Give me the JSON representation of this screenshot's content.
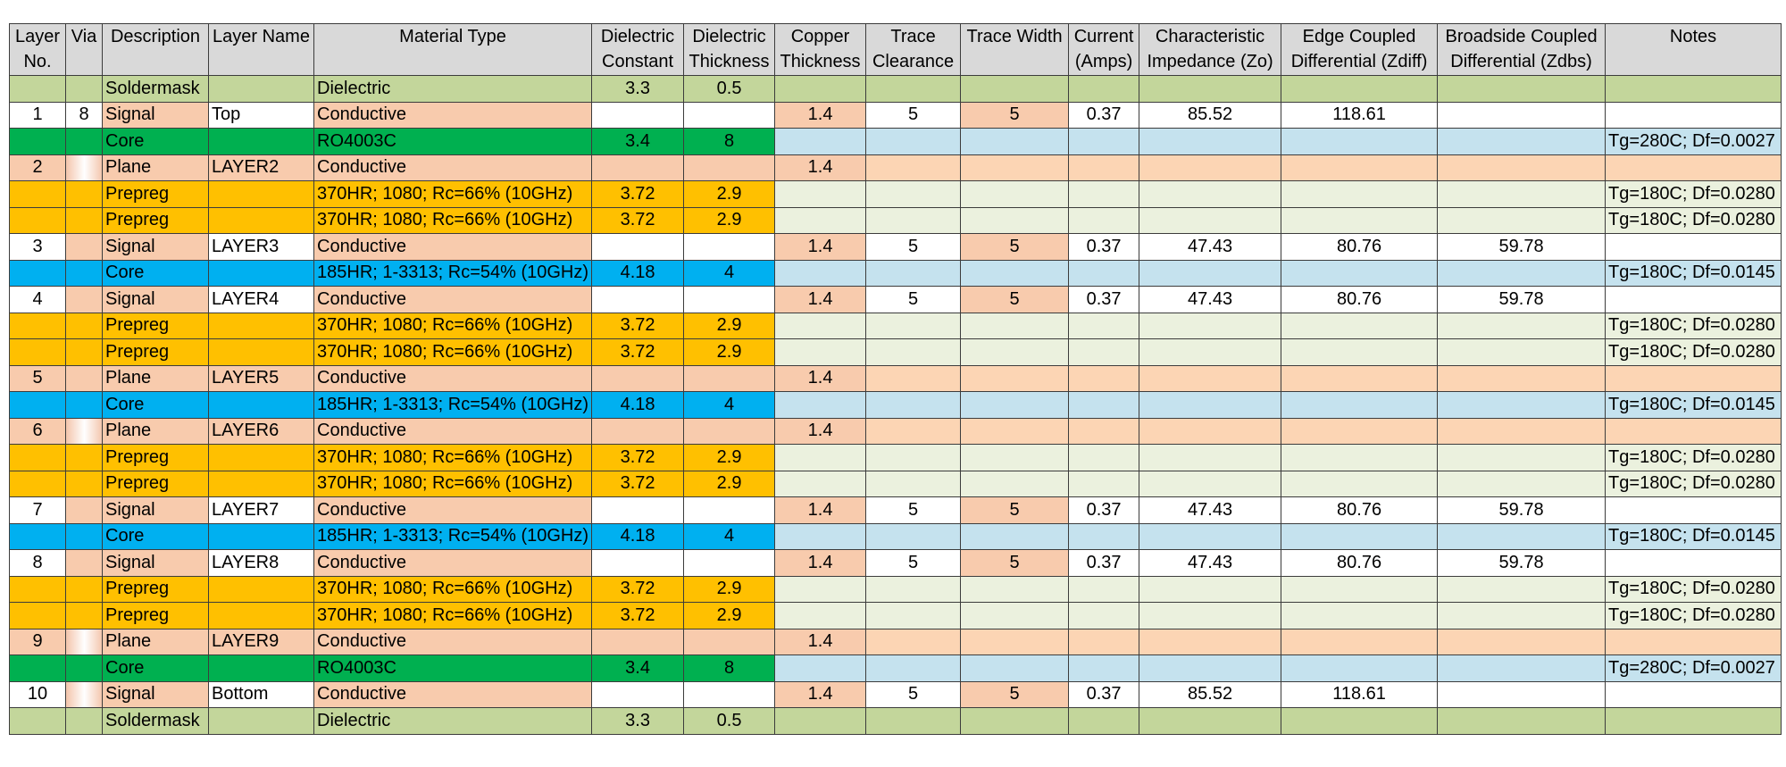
{
  "headers": [
    "Layer No.",
    "Via",
    "Description",
    "Layer Name",
    "Material Type",
    "Dielectric Constant",
    "Dielectric Thickness",
    "Copper Thickness",
    "Trace Clearance",
    "Trace Width",
    "Current (Amps)",
    "Characteristic Impedance (Zo)",
    "Edge Coupled Differential (Zdiff)",
    "Broadside Coupled Differential (Zdbs)",
    "Notes"
  ],
  "rows": [
    {
      "kind": "mask",
      "layer": "",
      "via": "",
      "desc": "Soldermask",
      "name": "",
      "material": "Dielectric",
      "dk": "3.3",
      "dt": "0.5",
      "cu": "",
      "tc": "",
      "tw": "",
      "amps": "",
      "zo": "",
      "zdiff": "",
      "zdbs": "",
      "notes": ""
    },
    {
      "kind": "signal",
      "layer": "1",
      "via": "8",
      "desc": "Signal",
      "name": "Top",
      "material": "Conductive",
      "dk": "",
      "dt": "",
      "cu": "1.4",
      "tc": "5",
      "tw": "5",
      "amps": "0.37",
      "zo": "85.52",
      "zdiff": "118.61",
      "zdbs": "",
      "notes": ""
    },
    {
      "kind": "core-ro",
      "layer": "",
      "via": "",
      "desc": "Core",
      "name": "",
      "material": "RO4003C",
      "dk": "3.4",
      "dt": "8",
      "cu": "",
      "tc": "",
      "tw": "",
      "amps": "",
      "zo": "",
      "zdiff": "",
      "zdbs": "",
      "notes": "Tg=280C; Df=0.0027"
    },
    {
      "kind": "plane",
      "layer": "2",
      "via": "",
      "desc": "Plane",
      "name": "LAYER2",
      "material": "Conductive",
      "dk": "",
      "dt": "",
      "cu": "1.4",
      "tc": "",
      "tw": "",
      "amps": "",
      "zo": "",
      "zdiff": "",
      "zdbs": "",
      "notes": ""
    },
    {
      "kind": "prepreg",
      "layer": "",
      "via": "",
      "desc": "Prepreg",
      "name": "",
      "material": "370HR; 1080; Rc=66% (10GHz)",
      "dk": "3.72",
      "dt": "2.9",
      "cu": "",
      "tc": "",
      "tw": "",
      "amps": "",
      "zo": "",
      "zdiff": "",
      "zdbs": "",
      "notes": "Tg=180C; Df=0.0280"
    },
    {
      "kind": "prepreg",
      "layer": "",
      "via": "",
      "desc": "Prepreg",
      "name": "",
      "material": "370HR; 1080; Rc=66% (10GHz)",
      "dk": "3.72",
      "dt": "2.9",
      "cu": "",
      "tc": "",
      "tw": "",
      "amps": "",
      "zo": "",
      "zdiff": "",
      "zdbs": "",
      "notes": "Tg=180C; Df=0.0280"
    },
    {
      "kind": "signal",
      "layer": "3",
      "via": "",
      "desc": "Signal",
      "name": "LAYER3",
      "material": "Conductive",
      "dk": "",
      "dt": "",
      "cu": "1.4",
      "tc": "5",
      "tw": "5",
      "amps": "0.37",
      "zo": "47.43",
      "zdiff": "80.76",
      "zdbs": "59.78",
      "notes": ""
    },
    {
      "kind": "core-185",
      "layer": "",
      "via": "",
      "desc": "Core",
      "name": "",
      "material": "185HR; 1-3313; Rc=54% (10GHz)",
      "dk": "4.18",
      "dt": "4",
      "cu": "",
      "tc": "",
      "tw": "",
      "amps": "",
      "zo": "",
      "zdiff": "",
      "zdbs": "",
      "notes": "Tg=180C; Df=0.0145"
    },
    {
      "kind": "signal",
      "layer": "4",
      "via": "",
      "desc": "Signal",
      "name": "LAYER4",
      "material": "Conductive",
      "dk": "",
      "dt": "",
      "cu": "1.4",
      "tc": "5",
      "tw": "5",
      "amps": "0.37",
      "zo": "47.43",
      "zdiff": "80.76",
      "zdbs": "59.78",
      "notes": ""
    },
    {
      "kind": "prepreg",
      "layer": "",
      "via": "",
      "desc": "Prepreg",
      "name": "",
      "material": "370HR; 1080; Rc=66% (10GHz)",
      "dk": "3.72",
      "dt": "2.9",
      "cu": "",
      "tc": "",
      "tw": "",
      "amps": "",
      "zo": "",
      "zdiff": "",
      "zdbs": "",
      "notes": "Tg=180C; Df=0.0280"
    },
    {
      "kind": "prepreg",
      "layer": "",
      "via": "",
      "desc": "Prepreg",
      "name": "",
      "material": "370HR; 1080; Rc=66% (10GHz)",
      "dk": "3.72",
      "dt": "2.9",
      "cu": "",
      "tc": "",
      "tw": "",
      "amps": "",
      "zo": "",
      "zdiff": "",
      "zdbs": "",
      "notes": "Tg=180C; Df=0.0280"
    },
    {
      "kind": "plane",
      "layer": "5",
      "via": "",
      "desc": "Plane",
      "name": "LAYER5",
      "material": "Conductive",
      "dk": "",
      "dt": "",
      "cu": "1.4",
      "tc": "",
      "tw": "",
      "amps": "",
      "zo": "",
      "zdiff": "",
      "zdbs": "",
      "notes": ""
    },
    {
      "kind": "core-185",
      "layer": "",
      "via": "",
      "desc": "Core",
      "name": "",
      "material": "185HR; 1-3313; Rc=54% (10GHz)",
      "dk": "4.18",
      "dt": "4",
      "cu": "",
      "tc": "",
      "tw": "",
      "amps": "",
      "zo": "",
      "zdiff": "",
      "zdbs": "",
      "notes": "Tg=180C; Df=0.0145"
    },
    {
      "kind": "plane",
      "layer": "6",
      "via": "",
      "desc": "Plane",
      "name": "LAYER6",
      "material": "Conductive",
      "dk": "",
      "dt": "",
      "cu": "1.4",
      "tc": "",
      "tw": "",
      "amps": "",
      "zo": "",
      "zdiff": "",
      "zdbs": "",
      "notes": ""
    },
    {
      "kind": "prepreg",
      "layer": "",
      "via": "",
      "desc": "Prepreg",
      "name": "",
      "material": "370HR; 1080; Rc=66% (10GHz)",
      "dk": "3.72",
      "dt": "2.9",
      "cu": "",
      "tc": "",
      "tw": "",
      "amps": "",
      "zo": "",
      "zdiff": "",
      "zdbs": "",
      "notes": "Tg=180C; Df=0.0280"
    },
    {
      "kind": "prepreg",
      "layer": "",
      "via": "",
      "desc": "Prepreg",
      "name": "",
      "material": "370HR; 1080; Rc=66% (10GHz)",
      "dk": "3.72",
      "dt": "2.9",
      "cu": "",
      "tc": "",
      "tw": "",
      "amps": "",
      "zo": "",
      "zdiff": "",
      "zdbs": "",
      "notes": "Tg=180C; Df=0.0280"
    },
    {
      "kind": "signal",
      "layer": "7",
      "via": "",
      "desc": "Signal",
      "name": "LAYER7",
      "material": "Conductive",
      "dk": "",
      "dt": "",
      "cu": "1.4",
      "tc": "5",
      "tw": "5",
      "amps": "0.37",
      "zo": "47.43",
      "zdiff": "80.76",
      "zdbs": "59.78",
      "notes": ""
    },
    {
      "kind": "core-185",
      "layer": "",
      "via": "",
      "desc": "Core",
      "name": "",
      "material": "185HR; 1-3313; Rc=54% (10GHz)",
      "dk": "4.18",
      "dt": "4",
      "cu": "",
      "tc": "",
      "tw": "",
      "amps": "",
      "zo": "",
      "zdiff": "",
      "zdbs": "",
      "notes": "Tg=180C; Df=0.0145"
    },
    {
      "kind": "signal",
      "layer": "8",
      "via": "",
      "desc": "Signal",
      "name": "LAYER8",
      "material": "Conductive",
      "dk": "",
      "dt": "",
      "cu": "1.4",
      "tc": "5",
      "tw": "5",
      "amps": "0.37",
      "zo": "47.43",
      "zdiff": "80.76",
      "zdbs": "59.78",
      "notes": ""
    },
    {
      "kind": "prepreg",
      "layer": "",
      "via": "",
      "desc": "Prepreg",
      "name": "",
      "material": "370HR; 1080; Rc=66% (10GHz)",
      "dk": "3.72",
      "dt": "2.9",
      "cu": "",
      "tc": "",
      "tw": "",
      "amps": "",
      "zo": "",
      "zdiff": "",
      "zdbs": "",
      "notes": "Tg=180C; Df=0.0280"
    },
    {
      "kind": "prepreg",
      "layer": "",
      "via": "",
      "desc": "Prepreg",
      "name": "",
      "material": "370HR; 1080; Rc=66% (10GHz)",
      "dk": "3.72",
      "dt": "2.9",
      "cu": "",
      "tc": "",
      "tw": "",
      "amps": "",
      "zo": "",
      "zdiff": "",
      "zdbs": "",
      "notes": "Tg=180C; Df=0.0280"
    },
    {
      "kind": "plane",
      "layer": "9",
      "via": "",
      "desc": "Plane",
      "name": "LAYER9",
      "material": "Conductive",
      "dk": "",
      "dt": "",
      "cu": "1.4",
      "tc": "",
      "tw": "",
      "amps": "",
      "zo": "",
      "zdiff": "",
      "zdbs": "",
      "notes": ""
    },
    {
      "kind": "core-ro",
      "layer": "",
      "via": "",
      "desc": "Core",
      "name": "",
      "material": "RO4003C",
      "dk": "3.4",
      "dt": "8",
      "cu": "",
      "tc": "",
      "tw": "",
      "amps": "",
      "zo": "",
      "zdiff": "",
      "zdbs": "",
      "notes": "Tg=280C; Df=0.0027"
    },
    {
      "kind": "signal",
      "layer": "10",
      "via": "",
      "desc": "Signal",
      "name": "Bottom",
      "material": "Conductive",
      "dk": "",
      "dt": "",
      "cu": "1.4",
      "tc": "5",
      "tw": "5",
      "amps": "0.37",
      "zo": "85.52",
      "zdiff": "118.61",
      "zdbs": "",
      "notes": ""
    },
    {
      "kind": "mask",
      "layer": "",
      "via": "",
      "desc": "Soldermask",
      "name": "",
      "material": "Dielectric",
      "dk": "3.3",
      "dt": "0.5",
      "cu": "",
      "tc": "",
      "tw": "",
      "amps": "",
      "zo": "",
      "zdiff": "",
      "zdbs": "",
      "notes": ""
    }
  ],
  "colors": {
    "header": "#d9d9d9",
    "soldermask": "#c3d69b",
    "core_ro4003c": "#00b050",
    "core_185hr": "#00b0f0",
    "prepreg": "#ffc000",
    "conductive": "#f8cbad",
    "core_fill": "#c5e2ee",
    "prepreg_fill": "#ebf1de"
  }
}
